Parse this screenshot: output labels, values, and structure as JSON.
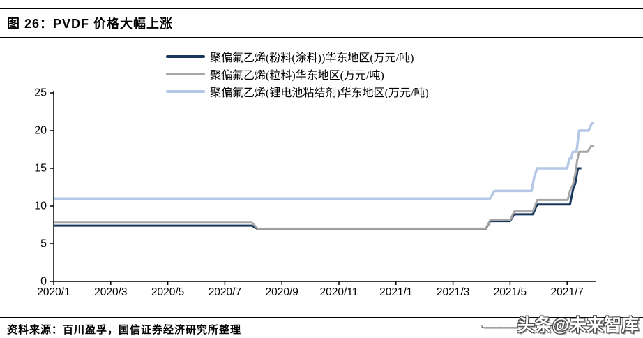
{
  "figure": {
    "title": "图 26：PVDF 价格大幅上涨"
  },
  "footer": {
    "source": "资料来源：百川盈孚，国信证券经济研究所整理"
  },
  "watermark": {
    "text": "——头条@未来智库"
  },
  "chart_data": {
    "type": "line",
    "style": "stepped price lines",
    "title": "",
    "xlabel": "",
    "ylabel": "",
    "unit": "万元/吨",
    "grid": false,
    "legend_position": "top-center",
    "x_axis": {
      "x_unit": "months_since_2020_01",
      "tick_months": [
        0,
        2,
        4,
        6,
        8,
        10,
        12,
        14,
        16,
        18
      ],
      "tick_labels": [
        "2020/1",
        "2020/3",
        "2020/5",
        "2020/7",
        "2020/9",
        "2020/11",
        "2021/1",
        "2021/3",
        "2021/5",
        "2021/7"
      ],
      "range_months": [
        0,
        19
      ]
    },
    "y_axis": {
      "ticks": [
        0,
        5,
        10,
        15,
        20,
        25
      ],
      "range": [
        0,
        25
      ]
    },
    "series": [
      {
        "name": "聚偏氟乙烯(粉料(涂料))华东地区(万元/吨)",
        "color": "#17375D",
        "stroke_width": 3,
        "points": [
          [
            0,
            7.4
          ],
          [
            6.95,
            7.4
          ],
          [
            7.15,
            6.95
          ],
          [
            15.15,
            6.95
          ],
          [
            15.3,
            8.0
          ],
          [
            16.0,
            8.0
          ],
          [
            16.15,
            8.9
          ],
          [
            16.8,
            8.9
          ],
          [
            16.95,
            10.2
          ],
          [
            18.1,
            10.2
          ],
          [
            18.22,
            12.4
          ],
          [
            18.28,
            12.9
          ],
          [
            18.38,
            15.0
          ],
          [
            18.5,
            15.0
          ]
        ]
      },
      {
        "name": "聚偏氟乙烯(粒料)华东地区(万元/吨)",
        "color": "#A6A6A6",
        "stroke_width": 3,
        "points": [
          [
            0,
            7.8
          ],
          [
            6.95,
            7.8
          ],
          [
            7.15,
            7.0
          ],
          [
            15.15,
            7.0
          ],
          [
            15.3,
            8.1
          ],
          [
            16.0,
            8.1
          ],
          [
            16.15,
            9.3
          ],
          [
            16.8,
            9.3
          ],
          [
            16.95,
            10.8
          ],
          [
            18.02,
            10.8
          ],
          [
            18.1,
            12.0
          ],
          [
            18.2,
            12.8
          ],
          [
            18.3,
            14.5
          ],
          [
            18.35,
            16.0
          ],
          [
            18.42,
            17.2
          ],
          [
            18.72,
            17.2
          ],
          [
            18.85,
            18.0
          ],
          [
            18.95,
            18.0
          ]
        ]
      },
      {
        "name": "聚偏氟乙烯(锂电池粘结剂)华东地区(万元/吨)",
        "color": "#B4C7E7",
        "stroke_width": 3.5,
        "points": [
          [
            0,
            11.0
          ],
          [
            15.3,
            11.0
          ],
          [
            15.45,
            12.0
          ],
          [
            16.75,
            12.0
          ],
          [
            16.85,
            13.9
          ],
          [
            16.95,
            15.0
          ],
          [
            18.0,
            15.0
          ],
          [
            18.08,
            16.3
          ],
          [
            18.14,
            16.3
          ],
          [
            18.2,
            17.2
          ],
          [
            18.33,
            17.2
          ],
          [
            18.42,
            20.0
          ],
          [
            18.75,
            20.0
          ],
          [
            18.87,
            21.0
          ],
          [
            18.95,
            21.0
          ]
        ]
      }
    ]
  }
}
